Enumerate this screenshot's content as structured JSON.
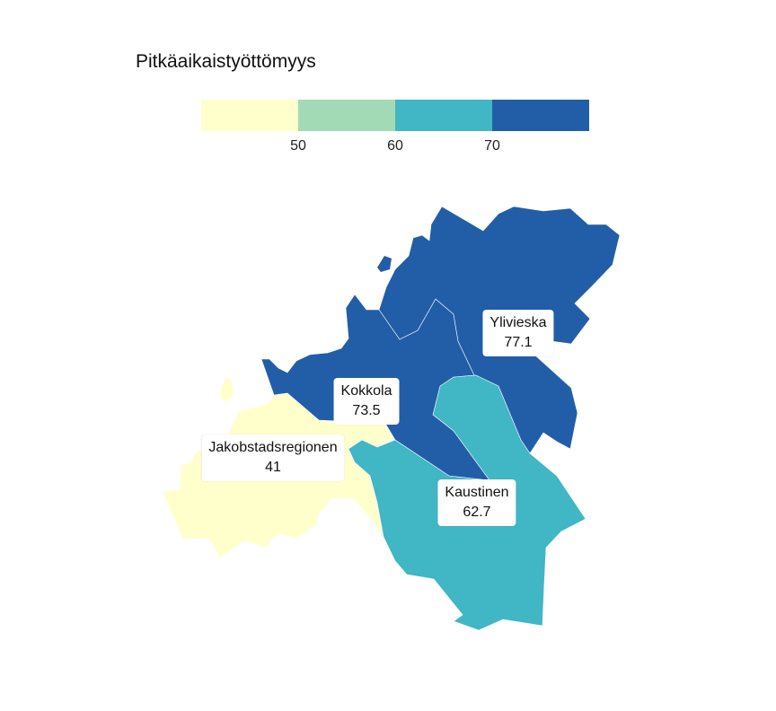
{
  "title": "Pitkäaikaistyöttömyys",
  "legend": {
    "bins": [
      {
        "color": "#ffffcc"
      },
      {
        "color": "#a1dab4"
      },
      {
        "color": "#41b6c4"
      },
      {
        "color": "#225ea8"
      }
    ],
    "ticks": [
      "50",
      "60",
      "70"
    ]
  },
  "regions": [
    {
      "name": "Ylivieska",
      "value": "77.1",
      "color": "#225ea8"
    },
    {
      "name": "Kokkola",
      "value": "73.5",
      "color": "#225ea8"
    },
    {
      "name": "Jakobstadsregionen",
      "value": "41",
      "color": "#ffffcc"
    },
    {
      "name": "Kaustinen",
      "value": "62.7",
      "color": "#41b6c4"
    }
  ]
}
